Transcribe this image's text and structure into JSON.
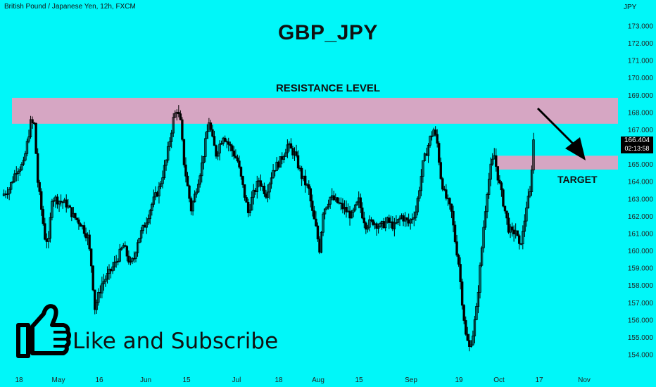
{
  "header": {
    "instrument": "British Pound / Japanese Yen, 12h, FXCM",
    "title": "GBP_JPY",
    "currency": "JPY"
  },
  "annotations": {
    "resistance_label": "RESISTANCE LEVEL",
    "target_label": "TARGET",
    "subscribe_text": "Like and Subscribe"
  },
  "price_tag": {
    "price": "166.404",
    "countdown": "02:13:58"
  },
  "colors": {
    "background": "#00f7f9",
    "zone": "#d6a6c3",
    "candle": "#000000",
    "thumb_icon": "#000000"
  },
  "chart_data": {
    "type": "candlestick",
    "title": "GBP_JPY",
    "xlabel": "",
    "ylabel": "",
    "ylim": [
      153.3,
      174.0
    ],
    "y_ticks": [
      "154.000",
      "155.000",
      "156.000",
      "157.000",
      "158.000",
      "159.000",
      "160.000",
      "161.000",
      "162.000",
      "163.000",
      "164.000",
      "165.000",
      "166.000",
      "167.000",
      "168.000",
      "169.000",
      "170.000",
      "171.000",
      "172.000",
      "173.000"
    ],
    "x_ticks": [
      "18",
      "May",
      "16",
      "Jun",
      "15",
      "Jul",
      "18",
      "Aug",
      "15",
      "Sep",
      "19",
      "Oct",
      "17",
      "Nov"
    ],
    "resistance_zone": [
      167.35,
      168.85
    ],
    "target_zone": [
      164.7,
      165.5
    ],
    "close_path": [
      [
        0,
        163.2
      ],
      [
        2,
        163.6
      ],
      [
        4,
        164.7
      ],
      [
        6,
        165.0
      ],
      [
        8,
        167.4
      ],
      [
        9,
        167.3
      ],
      [
        10,
        164.0
      ],
      [
        12,
        160.8
      ],
      [
        13,
        160.5
      ],
      [
        14,
        163.1
      ],
      [
        16,
        162.9
      ],
      [
        18,
        162.7
      ],
      [
        20,
        162.0
      ],
      [
        22,
        161.6
      ],
      [
        24,
        160.8
      ],
      [
        25,
        159.2
      ],
      [
        26,
        156.7
      ],
      [
        28,
        158.1
      ],
      [
        30,
        158.7
      ],
      [
        32,
        159.4
      ],
      [
        34,
        160.3
      ],
      [
        36,
        159.2
      ],
      [
        37,
        159.6
      ],
      [
        38,
        160.6
      ],
      [
        40,
        161.5
      ],
      [
        42,
        162.7
      ],
      [
        44,
        163.6
      ],
      [
        46,
        165.2
      ],
      [
        48,
        167.6
      ],
      [
        49,
        168.2
      ],
      [
        50,
        167.4
      ],
      [
        51,
        165.1
      ],
      [
        52,
        163.7
      ],
      [
        53,
        162.4
      ],
      [
        54,
        163.2
      ],
      [
        56,
        165.0
      ],
      [
        58,
        167.5
      ],
      [
        59,
        166.4
      ],
      [
        60,
        165.6
      ],
      [
        62,
        166.7
      ],
      [
        64,
        166.0
      ],
      [
        66,
        165.2
      ],
      [
        67,
        164.2
      ],
      [
        68,
        163.2
      ],
      [
        69,
        162.2
      ],
      [
        70,
        163.0
      ],
      [
        72,
        164.1
      ],
      [
        74,
        163.3
      ],
      [
        76,
        164.7
      ],
      [
        78,
        165.2
      ],
      [
        80,
        166.1
      ],
      [
        82,
        165.6
      ],
      [
        84,
        164.3
      ],
      [
        86,
        163.5
      ],
      [
        87,
        162.2
      ],
      [
        88,
        161.3
      ],
      [
        89,
        160.1
      ],
      [
        90,
        162.3
      ],
      [
        92,
        163.1
      ],
      [
        94,
        162.8
      ],
      [
        96,
        162.4
      ],
      [
        98,
        162.0
      ],
      [
        100,
        162.9
      ],
      [
        101,
        162.1
      ],
      [
        102,
        161.5
      ],
      [
        104,
        161.7
      ],
      [
        106,
        161.4
      ],
      [
        108,
        161.7
      ],
      [
        110,
        161.4
      ],
      [
        112,
        162.0
      ],
      [
        114,
        161.6
      ],
      [
        116,
        162.3
      ],
      [
        118,
        165.0
      ],
      [
        120,
        166.5
      ],
      [
        121,
        167.0
      ],
      [
        122,
        166.2
      ],
      [
        123,
        164.3
      ],
      [
        124,
        163.3
      ],
      [
        125,
        162.8
      ],
      [
        126,
        162.2
      ],
      [
        127,
        160.6
      ],
      [
        128,
        159.3
      ],
      [
        129,
        157.1
      ],
      [
        130,
        155.1
      ],
      [
        131,
        154.4
      ],
      [
        132,
        155.2
      ],
      [
        133,
        156.6
      ],
      [
        134,
        159.0
      ],
      [
        135,
        161.4
      ],
      [
        136,
        163.5
      ],
      [
        137,
        164.8
      ],
      [
        138,
        165.5
      ],
      [
        139,
        164.3
      ],
      [
        140,
        163.3
      ],
      [
        141,
        162.3
      ],
      [
        142,
        161.3
      ],
      [
        143,
        161.0
      ],
      [
        144,
        161.2
      ],
      [
        145,
        160.2
      ],
      [
        146,
        161.0
      ],
      [
        147,
        162.6
      ],
      [
        148,
        163.3
      ],
      [
        149,
        166.4
      ]
    ]
  }
}
